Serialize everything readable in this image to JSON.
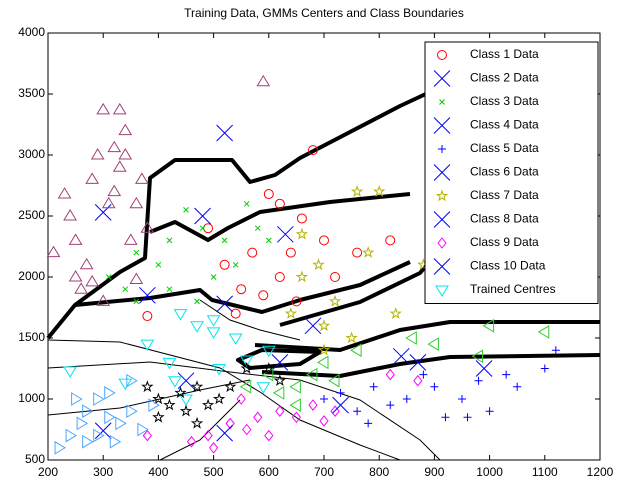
{
  "chart_data": {
    "type": "scatter",
    "title": "Training Data, GMMs Centers and Class Boundaries",
    "xlim": [
      200,
      1200
    ],
    "ylim": [
      500,
      4000
    ],
    "xticks": [
      200,
      300,
      400,
      500,
      600,
      700,
      800,
      900,
      1000,
      1100,
      1200
    ],
    "yticks": [
      500,
      1000,
      1500,
      2000,
      2500,
      3000,
      3500,
      4000
    ],
    "legend": "upper right",
    "series": [
      {
        "name": "Class 1 Data",
        "color": "#ff0000",
        "marker": "circle",
        "x": [
          380,
          490,
          520,
          550,
          570,
          600,
          620,
          640,
          660,
          680,
          700,
          720,
          760,
          620,
          590,
          540,
          650,
          820
        ],
        "y": [
          1680,
          2400,
          2100,
          1900,
          2200,
          2680,
          2600,
          2200,
          2480,
          3040,
          2300,
          2000,
          2200,
          2000,
          1850,
          1700,
          1800,
          2300
        ]
      },
      {
        "name": "Class 2 Data",
        "color": "#0000ff",
        "marker": "bigx",
        "x": [
          300,
          520
        ],
        "y": [
          2530,
          3180
        ]
      },
      {
        "name": "Class 3 Data",
        "color": "#00cc00",
        "marker": "smallx",
        "x": [
          310,
          340,
          360,
          400,
          420,
          450,
          480,
          500,
          520,
          560,
          580,
          420,
          470,
          360,
          540,
          600
        ],
        "y": [
          2000,
          1900,
          1800,
          2100,
          2300,
          2550,
          2400,
          2000,
          2300,
          2600,
          2400,
          1900,
          1800,
          2200,
          2100,
          2300
        ]
      },
      {
        "name": "Class 4 Data",
        "color": "#0000ff",
        "marker": "bigx",
        "x": [
          480,
          630
        ],
        "y": [
          2500,
          2350
        ]
      },
      {
        "name": "Class 5 Data",
        "color": "#0000ff",
        "marker": "plus",
        "x": [
          700,
          730,
          760,
          790,
          820,
          850,
          880,
          900,
          920,
          950,
          980,
          1000,
          1050,
          1100,
          1120,
          1030,
          780,
          960
        ],
        "y": [
          1000,
          1050,
          900,
          1100,
          950,
          1000,
          1200,
          1100,
          850,
          1000,
          1150,
          900,
          1100,
          1250,
          1400,
          1200,
          800,
          850
        ]
      },
      {
        "name": "Class 6 Data",
        "color": "#0000ff",
        "marker": "bigx",
        "x": [
          380,
          520
        ],
        "y": [
          1850,
          1780
        ]
      },
      {
        "name": "Class 7 Data",
        "color": "#b3b300",
        "marker": "star",
        "x": [
          640,
          660,
          690,
          700,
          720,
          750,
          780,
          800,
          830,
          880,
          900,
          700,
          760,
          660
        ],
        "y": [
          1700,
          2000,
          2100,
          1600,
          1800,
          1500,
          2200,
          2700,
          1700,
          2100,
          2200,
          1400,
          2700,
          2350
        ]
      },
      {
        "name": "Class 8 Data",
        "color": "#0000ff",
        "marker": "bigx",
        "x": [
          680,
          840,
          990
        ],
        "y": [
          1600,
          1350,
          1250
        ]
      },
      {
        "name": "Class 9 Data",
        "color": "#ff00ff",
        "marker": "diamond",
        "x": [
          380,
          460,
          490,
          530,
          560,
          580,
          600,
          620,
          650,
          680,
          700,
          720,
          500,
          550,
          820,
          870
        ],
        "y": [
          700,
          650,
          700,
          800,
          750,
          850,
          700,
          900,
          850,
          950,
          820,
          900,
          600,
          1000,
          1200,
          1150
        ]
      },
      {
        "name": "Class 10 Data",
        "color": "#0000ff",
        "marker": "bigx",
        "x": [
          300,
          450,
          520,
          620,
          730,
          870
        ],
        "y": [
          740,
          1150,
          720,
          1300,
          950,
          1300
        ]
      },
      {
        "name": "Trained Centres",
        "color": "#00e5ee",
        "marker": "tridown",
        "x": [
          240,
          340,
          380,
          420,
          430,
          470,
          500,
          540,
          560,
          590,
          510,
          450,
          600,
          500,
          440
        ],
        "y": [
          1230,
          1130,
          1450,
          1300,
          1150,
          1600,
          1650,
          1500,
          1320,
          1100,
          1250,
          1000,
          1400,
          1550,
          1700
        ]
      },
      {
        "color": "#a0407a",
        "marker": "triup",
        "x": [
          210,
          230,
          240,
          250,
          260,
          270,
          280,
          290,
          300,
          310,
          320,
          330,
          340,
          340,
          350,
          360,
          370,
          380,
          300,
          280,
          330,
          590,
          360,
          320,
          250
        ],
        "y": [
          2200,
          2680,
          2500,
          2000,
          1900,
          2100,
          2800,
          3000,
          3370,
          2600,
          2700,
          2900,
          3200,
          3000,
          2300,
          2600,
          2800,
          2400,
          1800,
          1960,
          3370,
          3600,
          1980,
          3060,
          2300
        ]
      },
      {
        "color": "#33cc33",
        "marker": "trileft",
        "x": [
          560,
          600,
          620,
          650,
          680,
          700,
          720,
          760,
          860,
          900,
          1000,
          1100,
          980,
          650
        ],
        "y": [
          1100,
          1200,
          1050,
          1100,
          1200,
          1300,
          1150,
          1400,
          1500,
          1450,
          1600,
          1550,
          1350,
          950
        ]
      },
      {
        "color": "#000000",
        "marker": "star",
        "x": [
          380,
          400,
          420,
          440,
          450,
          470,
          490,
          510,
          530,
          560,
          600,
          620,
          470,
          400
        ],
        "y": [
          1100,
          850,
          950,
          1050,
          900,
          800,
          950,
          1000,
          1100,
          1250,
          1250,
          1150,
          1100,
          1000
        ]
      },
      {
        "color": "#4da6ff",
        "marker": "triright",
        "x": [
          220,
          240,
          260,
          270,
          290,
          310,
          330,
          350,
          370,
          310,
          350,
          270,
          390,
          320,
          250,
          290
        ],
        "y": [
          600,
          700,
          800,
          900,
          1000,
          850,
          800,
          900,
          750,
          1050,
          1150,
          650,
          950,
          650,
          1000,
          700
        ]
      }
    ]
  }
}
